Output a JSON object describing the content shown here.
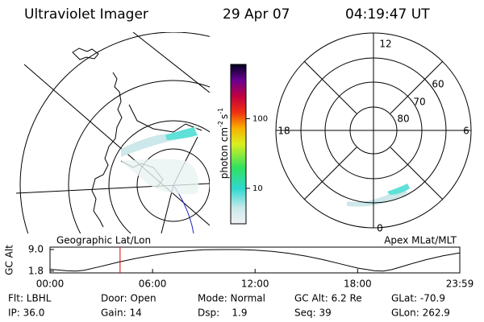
{
  "header": {
    "title": "Ultraviolet Imager",
    "date": "29 Apr 07",
    "time": "04:19:47 UT"
  },
  "colorbar": {
    "label": "photon cm",
    "exp1": "-2",
    "unit2": "s",
    "exp2": "-1",
    "lim": [
      3.1,
      600
    ],
    "log": true,
    "ticks": [
      {
        "value": 100,
        "label": "100"
      },
      {
        "value": 10,
        "label": "10"
      }
    ]
  },
  "left_panel": {
    "caption": "Geographic Lat/Lon"
  },
  "right_panel": {
    "caption": "Apex MLat/MLT",
    "mlt_labels": [
      "12",
      "18",
      "6",
      "0"
    ],
    "lat_labels": [
      "60",
      "70",
      "80"
    ]
  },
  "altitude_plot": {
    "ylabel": "GC Alt",
    "yticks": [
      {
        "value": 9.0,
        "label": "9.0"
      },
      {
        "value": 1.8,
        "label": "1.8"
      }
    ],
    "ylim": [
      1.2,
      9.8
    ],
    "xlim": [
      0,
      23.98
    ],
    "xticks": [
      {
        "value": 0,
        "label": "00:00"
      },
      {
        "value": 6,
        "label": "06:00"
      },
      {
        "value": 12,
        "label": "12:00"
      },
      {
        "value": 18,
        "label": "18:00"
      },
      {
        "value": 23.98,
        "label": "23:59"
      }
    ],
    "x": [
      0,
      1,
      1.5,
      2,
      3,
      4,
      5,
      6,
      7,
      8,
      9,
      10,
      10.5,
      11,
      12,
      13,
      14,
      15,
      16,
      17,
      18,
      19,
      19.5,
      20,
      21,
      22,
      23,
      23.98
    ],
    "values": [
      2.4,
      1.9,
      1.8,
      2.1,
      3.4,
      4.8,
      6.0,
      7.0,
      7.9,
      8.5,
      8.9,
      9.0,
      9.0,
      9.0,
      8.8,
      8.4,
      7.7,
      6.8,
      5.6,
      4.2,
      2.8,
      1.9,
      1.8,
      2.3,
      4.0,
      5.6,
      6.9,
      7.9
    ],
    "current": 4.1,
    "current_color": "#e00000",
    "line_color": "#000000"
  },
  "footer": [
    [
      "Flt: LBHL",
      "Door: Open",
      "Mode: Normal",
      "GC Alt: 6.2 Re",
      "GLat: -70.9"
    ],
    [
      "IP: 36.0",
      "Gain: 14",
      "Dsp:    1.9",
      "Seq: 39",
      "GLon: 262.9"
    ]
  ]
}
